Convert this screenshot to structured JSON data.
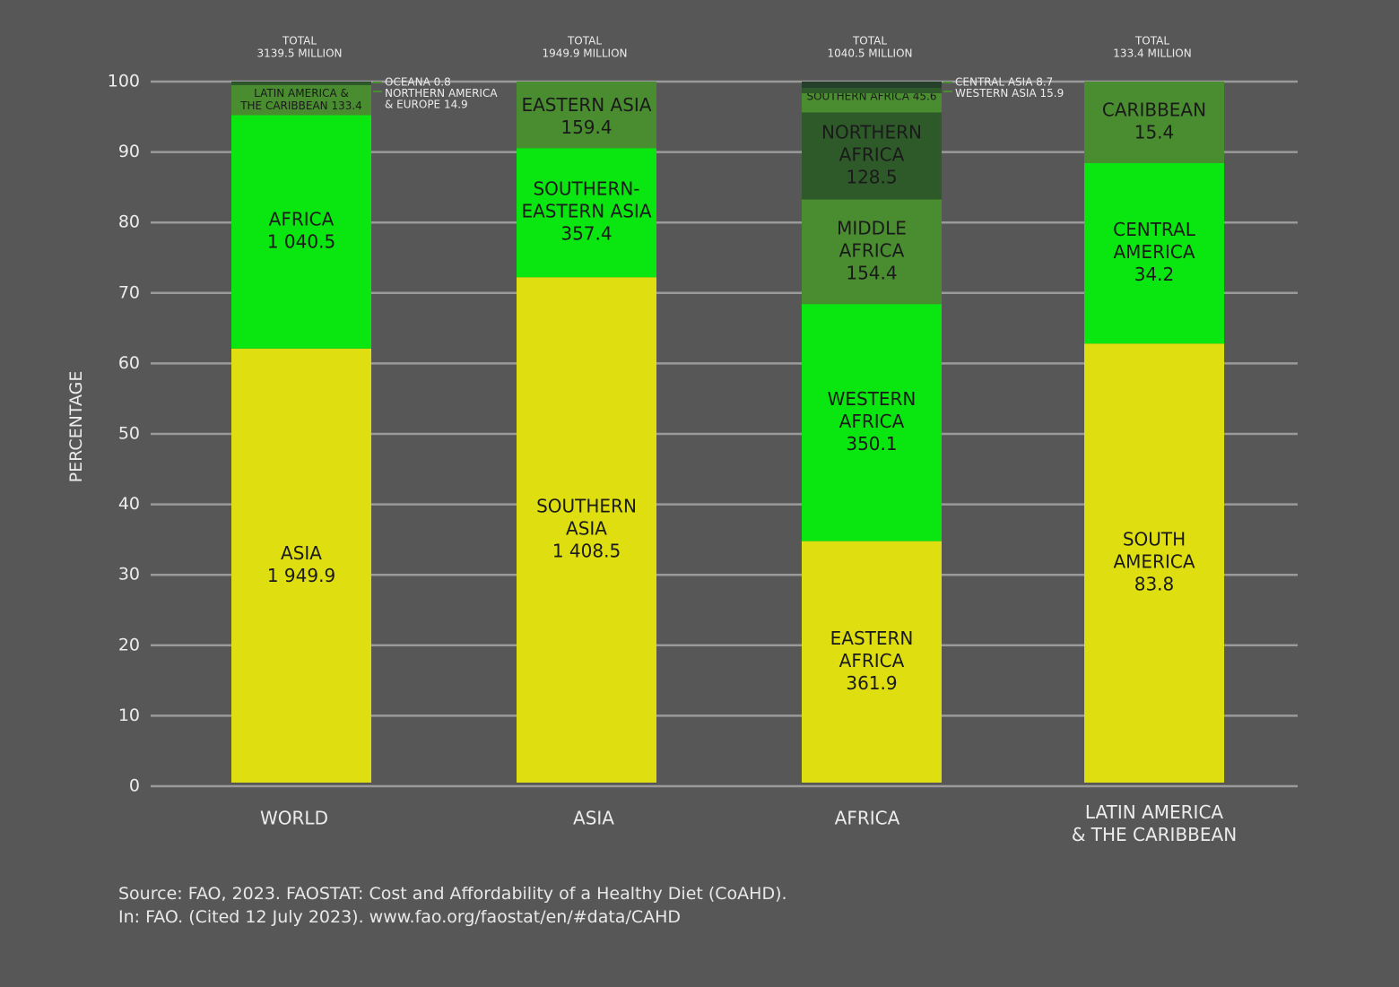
{
  "chart_data": {
    "type": "bar",
    "stacked": true,
    "ylabel": "PERCENTAGE",
    "ylim": [
      0,
      100
    ],
    "yticks": [
      0,
      10,
      20,
      30,
      40,
      50,
      60,
      70,
      80,
      90,
      100
    ],
    "grid": true,
    "colors": {
      "yellow": "#dede10",
      "green": "#0ae610",
      "mid": "#4a8d30",
      "dark": "#2e5a2a",
      "darkest": "#263f2b",
      "text": "#1a1a1a",
      "light": "#ececec",
      "grid": "#9a9a9a"
    },
    "bars": [
      {
        "category": [
          "WORLD"
        ],
        "total_label": [
          "TOTAL",
          "3139.5 MILLION"
        ],
        "segments": [
          {
            "name": "Asia",
            "value": 1949.9,
            "color": "yellow",
            "label": [
              "ASIA",
              "1 949.9"
            ]
          },
          {
            "name": "Africa",
            "value": 1040.5,
            "color": "green",
            "label": [
              "AFRICA",
              "1 040.5"
            ]
          },
          {
            "name": "Latin America & the Caribbean",
            "value": 133.4,
            "color": "mid",
            "label": [
              "LATIN AMERICA &",
              "THE CARIBBEAN 133.4"
            ],
            "small": true
          },
          {
            "name": "Northern America & Europe",
            "value": 14.9,
            "color": "dark"
          },
          {
            "name": "Oceana",
            "value": 0.8,
            "color": "darkest"
          }
        ],
        "callouts": [
          "OCEANA 0.8",
          "NORTHERN AMERICA",
          "& EUROPE 14.9"
        ]
      },
      {
        "category": [
          "ASIA"
        ],
        "total_label": [
          "TOTAL",
          "1949.9 MILLION"
        ],
        "segments": [
          {
            "name": "Southern Asia",
            "value": 1408.5,
            "color": "yellow",
            "label": [
              "SOUTHERN",
              "ASIA",
              "1 408.5"
            ]
          },
          {
            "name": "South-Eastern Asia",
            "value": 357.4,
            "color": "green",
            "label": [
              "SOUTHERN-",
              "EASTERN ASIA",
              "357.4"
            ]
          },
          {
            "name": "Eastern Asia",
            "value": 159.4,
            "color": "mid",
            "label": [
              "EASTERN ASIA",
              "159.4"
            ],
            "labelTop": true
          },
          {
            "name": "Western Asia",
            "value": 15.9,
            "color": "mid"
          },
          {
            "name": "Central Asia",
            "value": 8.7,
            "color": "mid"
          }
        ]
      },
      {
        "category": [
          "AFRICA"
        ],
        "total_label": [
          "TOTAL",
          "1040.5 MILLION"
        ],
        "segments": [
          {
            "name": "Eastern Africa",
            "value": 361.9,
            "color": "yellow",
            "label": [
              "EASTERN",
              "AFRICA",
              "361.9"
            ]
          },
          {
            "name": "Western Africa",
            "value": 350.1,
            "color": "green",
            "label": [
              "WESTERN",
              "AFRICA",
              "350.1"
            ]
          },
          {
            "name": "Middle Africa",
            "value": 154.4,
            "color": "mid",
            "label": [
              "MIDDLE",
              "AFRICA",
              "154.4"
            ]
          },
          {
            "name": "Northern Africa",
            "value": 128.5,
            "color": "dark",
            "label": [
              "NORTHERN",
              "AFRICA",
              "128.5"
            ]
          },
          {
            "name": "Southern Africa",
            "value": 45.6,
            "color": "mid",
            "label": [
              "SOUTHERN  AFRICA 45.6"
            ],
            "small": true
          }
        ],
        "callouts": [
          "CENTRAL ASIA 8.7",
          "WESTERN ASIA 15.9"
        ],
        "topstrips": [
          "dark",
          "darkest"
        ]
      },
      {
        "category": [
          "LATIN AMERICA",
          "& THE CARIBBEAN"
        ],
        "total_label": [
          "TOTAL",
          "133.4 MILLION"
        ],
        "segments": [
          {
            "name": "South America",
            "value": 83.8,
            "color": "yellow",
            "label": [
              "SOUTH",
              "AMERICA",
              "83.8"
            ]
          },
          {
            "name": "Central America",
            "value": 34.2,
            "color": "green",
            "label": [
              "CENTRAL",
              "AMERICA",
              "34.2"
            ]
          },
          {
            "name": "Caribbean",
            "value": 15.4,
            "color": "mid",
            "label": [
              "CARIBBEAN",
              "15.4"
            ]
          }
        ]
      }
    ]
  },
  "source": {
    "line1": "Source: FAO, 2023. FAOSTAT: Cost and Affordability of a Healthy Diet (CoAHD).",
    "line2": "In: FAO. (Cited 12 July 2023). www.fao.org/faostat/en/#data/CAHD"
  }
}
